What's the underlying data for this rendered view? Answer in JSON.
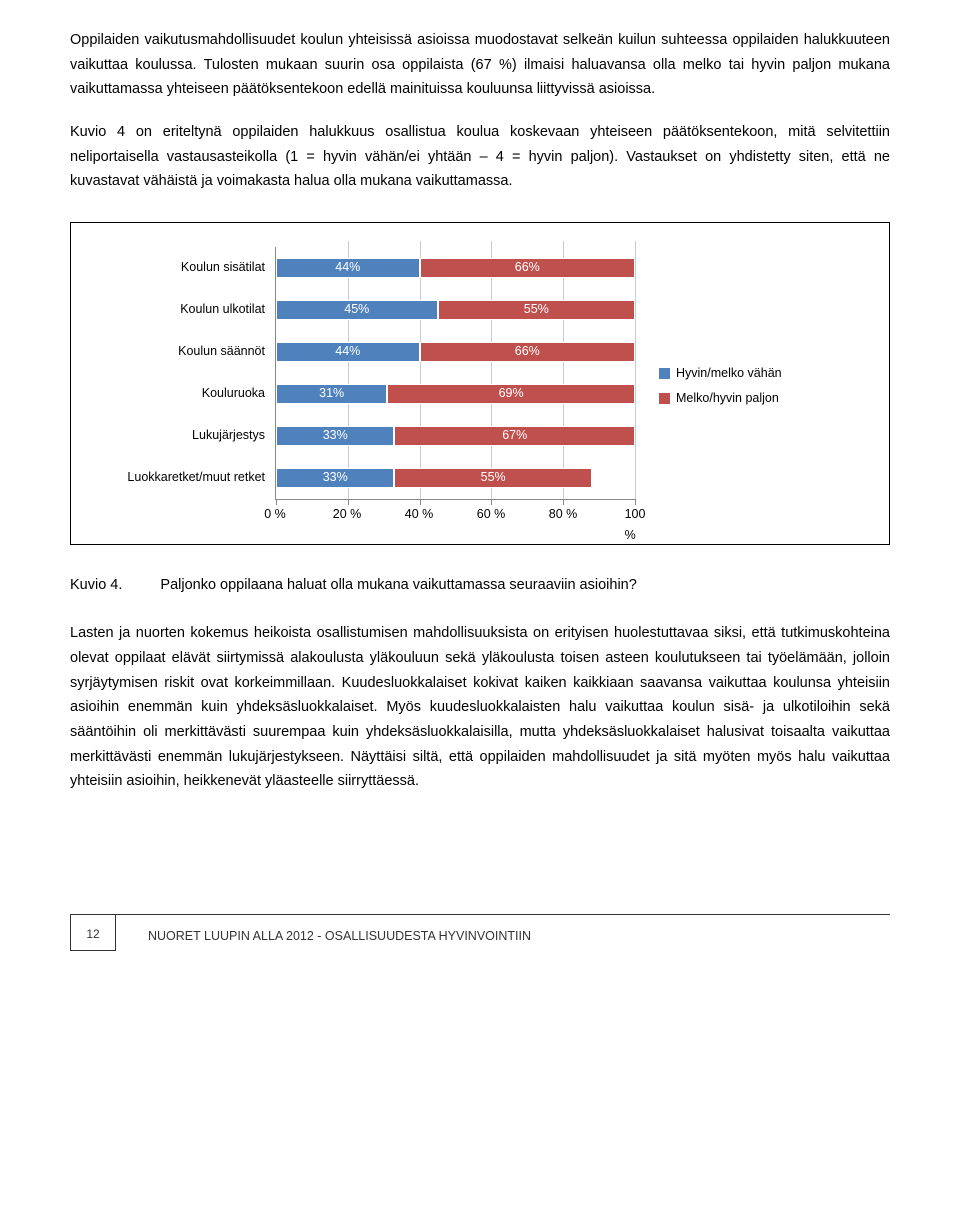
{
  "paragraphs": {
    "p1": "Oppilaiden vaikutusmahdollisuudet koulun yhteisissä asioissa muodostavat selkeän kuilun suhteessa oppilaiden halukkuuteen vaikuttaa koulussa. Tulosten mukaan suurin osa oppilaista (67 %) ilmaisi haluavansa olla melko tai hyvin paljon mukana vaikuttamassa yhteiseen päätöksentekoon edellä mainituissa kouluunsa liittyvissä asioissa.",
    "p2": "Kuvio 4 on eriteltynä oppilaiden halukkuus osallistua koulua koskevaan yhteiseen päätöksentekoon, mitä selvitettiin neliportaisella vastausasteikolla (1 = hyvin vähän/ei yhtään – 4 = hyvin paljon). Vastaukset on yhdistetty siten, että ne kuvastavat vähäistä ja voimakasta halua olla mukana vaikuttamassa.",
    "p3": "Lasten ja nuorten kokemus heikoista osallistumisen mahdollisuuksista on erityisen huolestuttavaa siksi, että tutkimuskohteina olevat oppilaat elävät siirtymissä alakoulusta yläkouluun sekä yläkoulusta toisen asteen koulutukseen tai työelämään, jolloin syrjäytymisen riskit ovat korkeimmillaan. Kuudesluokkalaiset kokivat kaiken kaikkiaan saavansa vaikuttaa koulunsa yhteisiin asioihin enemmän kuin yhdeksäsluokkalaiset. Myös kuudesluokkalaisten halu vaikuttaa koulun sisä- ja ulkotiloihin sekä sääntöihin oli merkittävästi suurempaa kuin yhdeksäsluokkalaisilla, mutta yhdeksäsluokkalaiset halusivat toisaalta vaikuttaa merkittävästi enemmän lukujärjestykseen. Näyttäisi siltä, että oppilaiden mahdollisuudet ja sitä myöten myös halu vaikuttaa yhteisiin asioihin, heikkenevät yläasteelle siirryttäessä."
  },
  "chart": {
    "type": "stacked-bar-horizontal",
    "xlim": [
      0,
      100
    ],
    "tick_step": 20,
    "ticks": [
      "0 %",
      "20 %",
      "40 %",
      "60 %",
      "80 %",
      "100 %"
    ],
    "series_colors": {
      "low": "#4f81bd",
      "high": "#c0504d"
    },
    "label_fontsize": 12.5,
    "categories": [
      {
        "label": "Koulun sisätilat",
        "low": 44,
        "high": 66,
        "low_txt": "44%",
        "high_txt": "66%"
      },
      {
        "label": "Koulun ulkotilat",
        "low": 45,
        "high": 55,
        "low_txt": "45%",
        "high_txt": "55%"
      },
      {
        "label": "Koulun säännöt",
        "low": 44,
        "high": 66,
        "low_txt": "44%",
        "high_txt": "66%"
      },
      {
        "label": "Kouluruoka",
        "low": 31,
        "high": 69,
        "low_txt": "31%",
        "high_txt": "69%"
      },
      {
        "label": "Lukujärjestys",
        "low": 33,
        "high": 67,
        "low_txt": "33%",
        "high_txt": "67%"
      },
      {
        "label": "Luokkaretket/muut retket",
        "low": 33,
        "high": 55,
        "low_txt": "33%",
        "high_txt": "55%"
      }
    ],
    "legend": [
      {
        "color": "#4f81bd",
        "label": "Hyvin/melko vähän"
      },
      {
        "color": "#c0504d",
        "label": "Melko/hyvin paljon"
      }
    ]
  },
  "caption": {
    "prefix": "Kuvio 4.",
    "text": "Paljonko oppilaana haluat olla mukana vaikuttamassa seuraaviin asioihin?"
  },
  "footer": {
    "page": "12",
    "title": "NUORET LUUPIN ALLA 2012 - OSALLISUUDESTA HYVINVOINTIIN"
  }
}
